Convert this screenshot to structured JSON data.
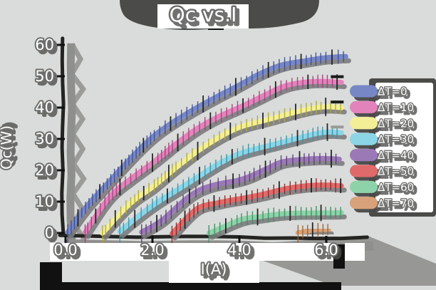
{
  "title": "Qc vs.I",
  "colors": {
    "background": "#d9dcda",
    "shadow_dark": "#4b4b49",
    "shadow_mid": "#8f8f8d",
    "line_shadow": "#7c7c7e",
    "axis": "#242422",
    "black": "#111111",
    "white": "#ffffff",
    "text_fill": "#ffffff",
    "text_outline": "#6e6e6c"
  },
  "axes": {
    "xlabel": "I(A)",
    "ylabel": "Qc(W)"
  },
  "legend": {
    "position": "center right"
  },
  "chart_data": {
    "type": "line",
    "title": "Qc vs.I",
    "xlabel": "I(A)",
    "ylabel": "Qc(W)",
    "xlim": [
      -0.15,
      6.75
    ],
    "ylim": [
      -1.5,
      62
    ],
    "x_ticks": [
      0.0,
      2.0,
      4.0,
      6.0
    ],
    "x_tick_labels": [
      "0.0",
      "2.0",
      "4.0",
      "6.0"
    ],
    "y_ticks": [
      0,
      10,
      20,
      30,
      40,
      50,
      60
    ],
    "y_tick_labels": [
      "0",
      "10",
      "20",
      "30",
      "40",
      "50",
      "60"
    ],
    "grid": false,
    "legend_position": "center right",
    "style": "hand-drawn sketch (xkcd-like), thick pastel lines with vertical tick markers, white outlined text, hard gray drop shadows",
    "series": [
      {
        "label": "ΔT=0",
        "color": "#7787c6",
        "tick_color": "#3f4f96",
        "points": [
          [
            0.05,
            0
          ],
          [
            0.5,
            8.8
          ],
          [
            1,
            16.5
          ],
          [
            1.5,
            23.6
          ],
          [
            2,
            30
          ],
          [
            2.5,
            35.3
          ],
          [
            3,
            40
          ],
          [
            3.5,
            43.8
          ],
          [
            4,
            47
          ],
          [
            4.5,
            50.8
          ],
          [
            5,
            54
          ],
          [
            5.5,
            55.5
          ],
          [
            5.95,
            56.2
          ],
          [
            6.45,
            56.2
          ]
        ]
      },
      {
        "label": "ΔT=10",
        "color": "#e283bb",
        "tick_color": "#a83f7e",
        "end_dash": "#1a1a1a",
        "points": [
          [
            0.45,
            0
          ],
          [
            1,
            11
          ],
          [
            1.5,
            17.5
          ],
          [
            2,
            23
          ],
          [
            2.5,
            28.3
          ],
          [
            3,
            33
          ],
          [
            3.5,
            37
          ],
          [
            4,
            40.5
          ],
          [
            4.5,
            43.8
          ],
          [
            5,
            46.5
          ],
          [
            5.5,
            47.6
          ],
          [
            5.95,
            48.1
          ],
          [
            6.35,
            48.1
          ]
        ]
      },
      {
        "label": "ΔT=20",
        "color": "#f3ef97",
        "tick_color": "#b0a832",
        "end_dash": "#1a1a1a",
        "points": [
          [
            0.85,
            0
          ],
          [
            1.5,
            9.5
          ],
          [
            2,
            15
          ],
          [
            2.5,
            21
          ],
          [
            3,
            26
          ],
          [
            3.5,
            30
          ],
          [
            4,
            33.5
          ],
          [
            4.5,
            35.8
          ],
          [
            5,
            37.6
          ],
          [
            5.5,
            38.9
          ],
          [
            5.95,
            39.6
          ],
          [
            6.35,
            39.6
          ]
        ]
      },
      {
        "label": "ΔT=30",
        "color": "#8bd5e6",
        "tick_color": "#3a93a8",
        "end_dash": "#9a9a98",
        "points": [
          [
            1.25,
            0
          ],
          [
            2,
            8.5
          ],
          [
            2.5,
            13.3
          ],
          [
            3,
            17.5
          ],
          [
            3.5,
            21.5
          ],
          [
            4,
            25
          ],
          [
            4.5,
            27.5
          ],
          [
            5,
            29.5
          ],
          [
            5.5,
            31
          ],
          [
            5.95,
            32
          ],
          [
            6.35,
            32
          ]
        ]
      },
      {
        "label": "ΔT=40",
        "color": "#9b79b7",
        "tick_color": "#5d3c7a",
        "points": [
          [
            1.75,
            0
          ],
          [
            2.2,
            4
          ],
          [
            3,
            13
          ],
          [
            4,
            16.5
          ],
          [
            4.6,
            20.5
          ],
          [
            5,
            23
          ],
          [
            5.6,
            23.5
          ],
          [
            6.3,
            23.5
          ]
        ]
      },
      {
        "label": "ΔT=50",
        "color": "#e06a6a",
        "tick_color": "#8f2626",
        "points": [
          [
            2.45,
            0
          ],
          [
            3,
            7.4
          ],
          [
            3.5,
            9.3
          ],
          [
            4,
            11
          ],
          [
            4.5,
            12.8
          ],
          [
            5,
            14.4
          ],
          [
            5.5,
            15
          ],
          [
            5.95,
            15.2
          ],
          [
            6.35,
            15.2
          ]
        ]
      },
      {
        "label": "ΔT=60",
        "color": "#8ed2a9",
        "tick_color": "#3f8f64",
        "points": [
          [
            3.3,
            0
          ],
          [
            4,
            4.5
          ],
          [
            4.5,
            5.3
          ],
          [
            5,
            6
          ],
          [
            5.5,
            6.6
          ],
          [
            5.95,
            7
          ],
          [
            6.35,
            7
          ]
        ]
      },
      {
        "label": "ΔT=70",
        "color": "#d7a179",
        "tick_color": "#9a6233",
        "points": [
          [
            5.35,
            0
          ],
          [
            5.75,
            1.2
          ],
          [
            6.05,
            1.2
          ]
        ]
      }
    ],
    "extra_segment": {
      "note": "olive flat segment at right end of ΔT=70 curve near Qc=0",
      "color": "#8d8a1c",
      "points": [
        [
          5.95,
          0.6
        ],
        [
          6.55,
          0.6
        ]
      ]
    }
  }
}
